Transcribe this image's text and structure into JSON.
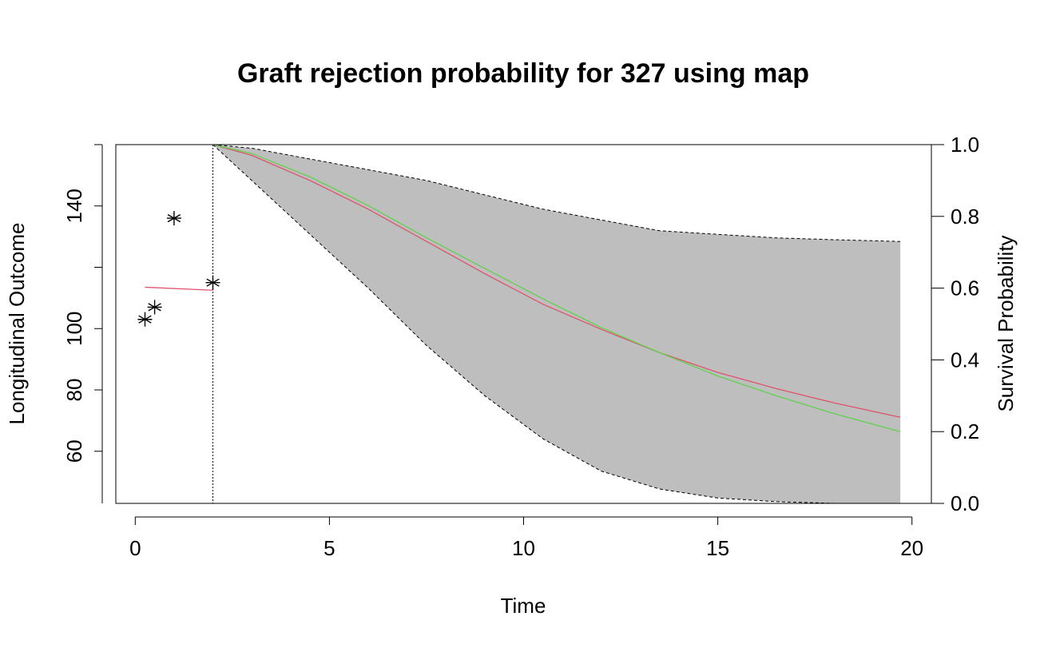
{
  "chart_data": {
    "type": "line",
    "title": "Graft rejection probability for 327 using map",
    "xlabel": "Time",
    "ylabel_left": "Longitudinal Outcome",
    "ylabel_right": "Survival Probability",
    "xlim": [
      -0.5,
      20.5
    ],
    "ylim_left": [
      43,
      160
    ],
    "ylim_right": [
      0,
      1
    ],
    "xticks": [
      0,
      5,
      10,
      15,
      20
    ],
    "xtick_labels": [
      "0",
      "5",
      "10",
      "15",
      "20"
    ],
    "yticks_left": [
      60,
      80,
      100,
      140
    ],
    "ytick_labels_left": [
      "60",
      "80",
      "100",
      "140"
    ],
    "yticks_right": [
      0,
      0.2,
      0.4,
      0.6,
      0.8,
      1
    ],
    "ytick_labels_right": [
      "0.0",
      "0.2",
      "0.4",
      "0.6",
      "0.8",
      "1.0"
    ],
    "last_observation_time": 2.0,
    "colors": {
      "band": "#bebebe",
      "mean_line": "#df536b",
      "median_line": "#61d04f",
      "points": "#000000",
      "longitudinal_fit": "#df536b"
    },
    "observations": [
      {
        "x": 0.25,
        "y": 103
      },
      {
        "x": 0.5,
        "y": 107
      },
      {
        "x": 1.0,
        "y": 136
      },
      {
        "x": 2.0,
        "y": 115
      }
    ],
    "longitudinal_fit": [
      {
        "x": 0.25,
        "y": 113.5
      },
      {
        "x": 2.0,
        "y": 112.5
      }
    ],
    "survival": {
      "x": [
        2.0,
        3.0,
        4.5,
        6.0,
        7.5,
        9.0,
        10.5,
        12.0,
        13.5,
        15.0,
        16.5,
        18.0,
        19.7
      ],
      "mean": [
        1.0,
        0.97,
        0.9,
        0.82,
        0.73,
        0.64,
        0.555,
        0.485,
        0.42,
        0.365,
        0.32,
        0.28,
        0.24
      ],
      "median": [
        1.0,
        0.975,
        0.91,
        0.83,
        0.74,
        0.655,
        0.57,
        0.49,
        0.42,
        0.355,
        0.3,
        0.25,
        0.2
      ],
      "lower": [
        1.0,
        0.9,
        0.75,
        0.6,
        0.44,
        0.3,
        0.18,
        0.09,
        0.04,
        0.015,
        0.005,
        0.0,
        0.0
      ],
      "upper": [
        1.0,
        0.99,
        0.96,
        0.93,
        0.9,
        0.86,
        0.82,
        0.79,
        0.76,
        0.75,
        0.74,
        0.735,
        0.73
      ]
    }
  }
}
